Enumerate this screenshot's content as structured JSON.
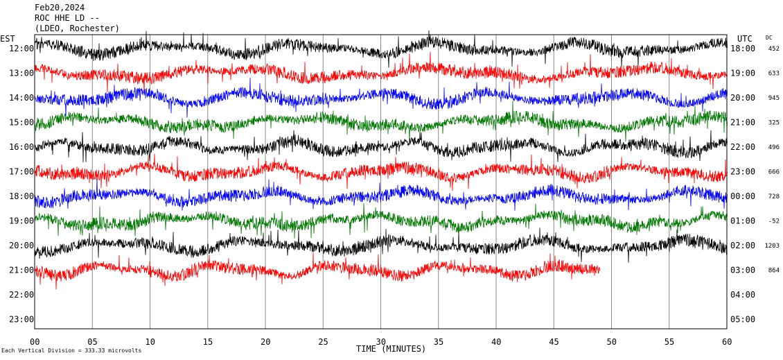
{
  "header": {
    "date": "Feb20,2024",
    "station": "ROC HHE LD --",
    "network": "(LDEO, Rochester)"
  },
  "axis_labels": {
    "left_tz": "EST",
    "right_tz": "UTC",
    "dc_title": "DC"
  },
  "footer": {
    "note": "Each Vertical Division =  333.33 microvolts"
  },
  "chart_data": {
    "type": "line",
    "title": "Feb20,2024",
    "xlabel": "TIME (MINUTES)",
    "ylabel": "",
    "x_ticks": [
      "00",
      "05",
      "10",
      "15",
      "20",
      "25",
      "30",
      "35",
      "40",
      "45",
      "50",
      "55",
      "60"
    ],
    "xlim": [
      0,
      60
    ],
    "rows": [
      {
        "est": "12:00",
        "utc": "18:00",
        "dc": "452",
        "color": "#000000",
        "end_minute": 60
      },
      {
        "est": "13:00",
        "utc": "19:00",
        "dc": "633",
        "color": "#ff0000",
        "end_minute": 60
      },
      {
        "est": "14:00",
        "utc": "20:00",
        "dc": "945",
        "color": "#0000ff",
        "end_minute": 60
      },
      {
        "est": "15:00",
        "utc": "21:00",
        "dc": "325",
        "color": "#007700",
        "end_minute": 60
      },
      {
        "est": "16:00",
        "utc": "22:00",
        "dc": "496",
        "color": "#000000",
        "end_minute": 60
      },
      {
        "est": "17:00",
        "utc": "23:00",
        "dc": "666",
        "color": "#ff0000",
        "end_minute": 60
      },
      {
        "est": "18:00",
        "utc": "00:00",
        "dc": "728",
        "color": "#0000ff",
        "end_minute": 60
      },
      {
        "est": "19:00",
        "utc": "01:00",
        "dc": "-52",
        "color": "#007700",
        "end_minute": 60
      },
      {
        "est": "20:00",
        "utc": "02:00",
        "dc": "1203",
        "color": "#000000",
        "end_minute": 60
      },
      {
        "est": "21:00",
        "utc": "03:00",
        "dc": "864",
        "color": "#ff0000",
        "end_minute": 49
      },
      {
        "est": "22:00",
        "utc": "04:00",
        "dc": "",
        "color": "#0000ff",
        "end_minute": 0
      },
      {
        "est": "23:00",
        "utc": "05:00",
        "dc": "",
        "color": "#007700",
        "end_minute": 0
      }
    ],
    "grid": "vertical lines every 5 minutes",
    "legend": "none"
  }
}
